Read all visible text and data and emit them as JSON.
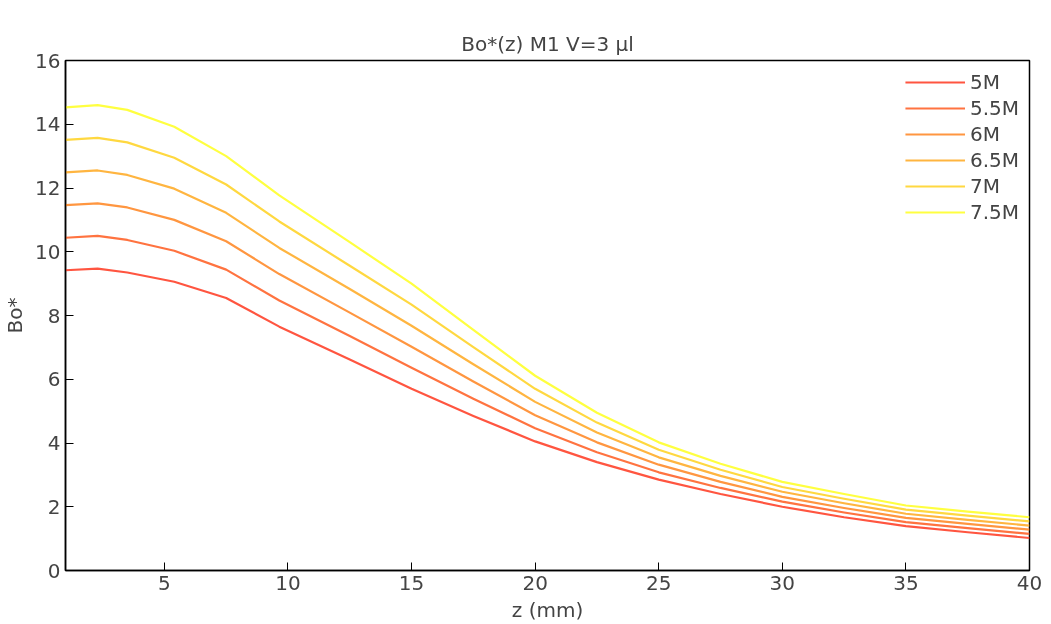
{
  "chart_data": {
    "type": "line",
    "title": "Bo*(z) M1 V=3 µl",
    "xlabel": "z (mm)",
    "ylabel": "Bo*",
    "x": [
      1,
      2.3,
      3.5,
      5.4,
      7.5,
      9.65,
      12.5,
      15,
      17.5,
      20,
      22.5,
      25,
      27.5,
      30,
      32.5,
      35,
      37.5,
      40
    ],
    "series": [
      {
        "name": "5M",
        "color": "#ff5540",
        "values": [
          9.42,
          9.47,
          9.35,
          9.06,
          8.55,
          7.65,
          6.62,
          5.7,
          4.85,
          4.05,
          3.4,
          2.85,
          2.4,
          2.0,
          1.67,
          1.39,
          1.2,
          1.02
        ]
      },
      {
        "name": "5.5M",
        "color": "#ff7340",
        "values": [
          10.44,
          10.5,
          10.37,
          10.03,
          9.44,
          8.47,
          7.36,
          6.36,
          5.39,
          4.46,
          3.71,
          3.08,
          2.59,
          2.16,
          1.82,
          1.52,
          1.33,
          1.15
        ]
      },
      {
        "name": "6M",
        "color": "#ff9640",
        "values": [
          11.46,
          11.52,
          11.39,
          11.0,
          10.33,
          9.3,
          8.09,
          7.02,
          5.93,
          4.87,
          4.02,
          3.32,
          2.78,
          2.31,
          1.96,
          1.65,
          1.46,
          1.28
        ]
      },
      {
        "name": "6.5M",
        "color": "#ffb540",
        "values": [
          12.49,
          12.55,
          12.41,
          11.98,
          11.22,
          10.12,
          8.83,
          7.68,
          6.47,
          5.29,
          4.33,
          3.55,
          2.97,
          2.47,
          2.11,
          1.78,
          1.59,
          1.41
        ]
      },
      {
        "name": "7M",
        "color": "#ffd840",
        "values": [
          13.51,
          13.57,
          13.43,
          12.95,
          12.11,
          10.95,
          9.56,
          8.34,
          7.01,
          5.7,
          4.64,
          3.79,
          3.16,
          2.62,
          2.25,
          1.91,
          1.72,
          1.54
        ]
      },
      {
        "name": "7.5M",
        "color": "#ffff40",
        "values": [
          14.53,
          14.6,
          14.45,
          13.92,
          13.0,
          11.77,
          10.3,
          9.0,
          7.55,
          6.11,
          4.95,
          4.02,
          3.35,
          2.78,
          2.4,
          2.04,
          1.85,
          1.67
        ]
      }
    ],
    "xlim": [
      1,
      40
    ],
    "xticks": [
      5,
      10,
      15,
      20,
      25,
      30,
      35,
      40
    ],
    "ylim": [
      0,
      16
    ],
    "yticks": [
      0,
      2,
      4,
      6,
      8,
      10,
      12,
      14,
      16
    ],
    "grid": false,
    "legend": "top right",
    "line_style": "solid",
    "marker": "none"
  }
}
